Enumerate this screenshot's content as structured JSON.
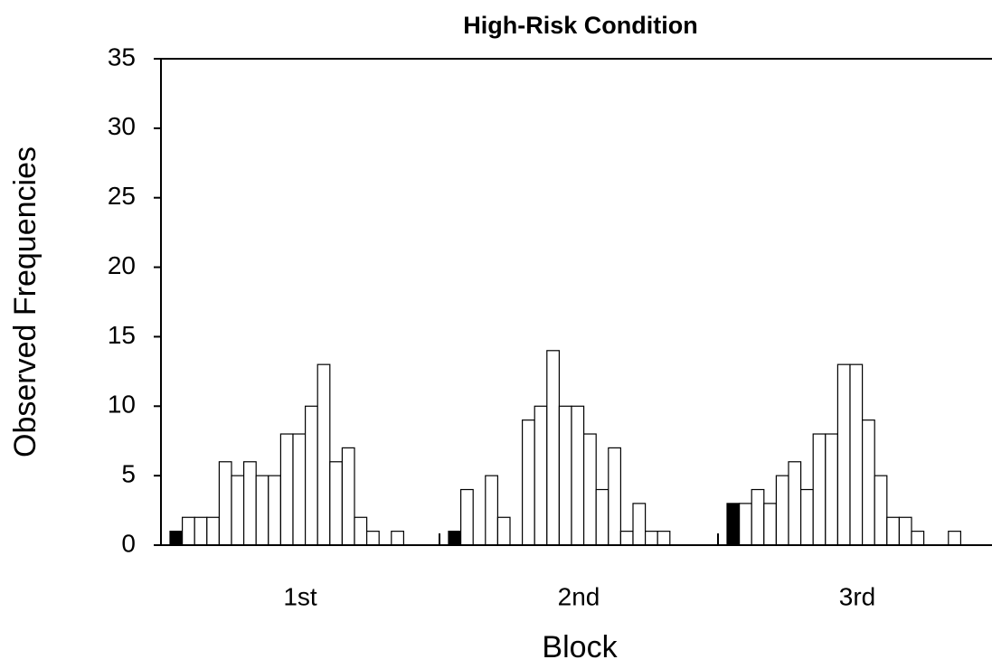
{
  "chart_data": {
    "type": "grouped-histogram",
    "title": "High-Risk Condition",
    "xlabel": "Block",
    "ylabel": "Observed Frequencies",
    "categories": [
      "1st",
      "2nd",
      "3rd"
    ],
    "values": [
      [
        1,
        2,
        2,
        2,
        6,
        5,
        6,
        5,
        5,
        8,
        8,
        10,
        13,
        6,
        7,
        2,
        1,
        0,
        1
      ],
      [
        1,
        4,
        0,
        5,
        2,
        0,
        9,
        10,
        14,
        10,
        10,
        8,
        4,
        7,
        1,
        3,
        1,
        1,
        0
      ],
      [
        3,
        3,
        4,
        3,
        5,
        6,
        4,
        8,
        8,
        13,
        13,
        9,
        5,
        2,
        2,
        1,
        0,
        0,
        1
      ]
    ],
    "color": "#ffffff",
    "first_bar_color": "#000000",
    "ylim": [
      0,
      35
    ],
    "yticks": [
      0,
      5,
      10,
      15,
      20,
      25,
      30,
      35
    ]
  }
}
